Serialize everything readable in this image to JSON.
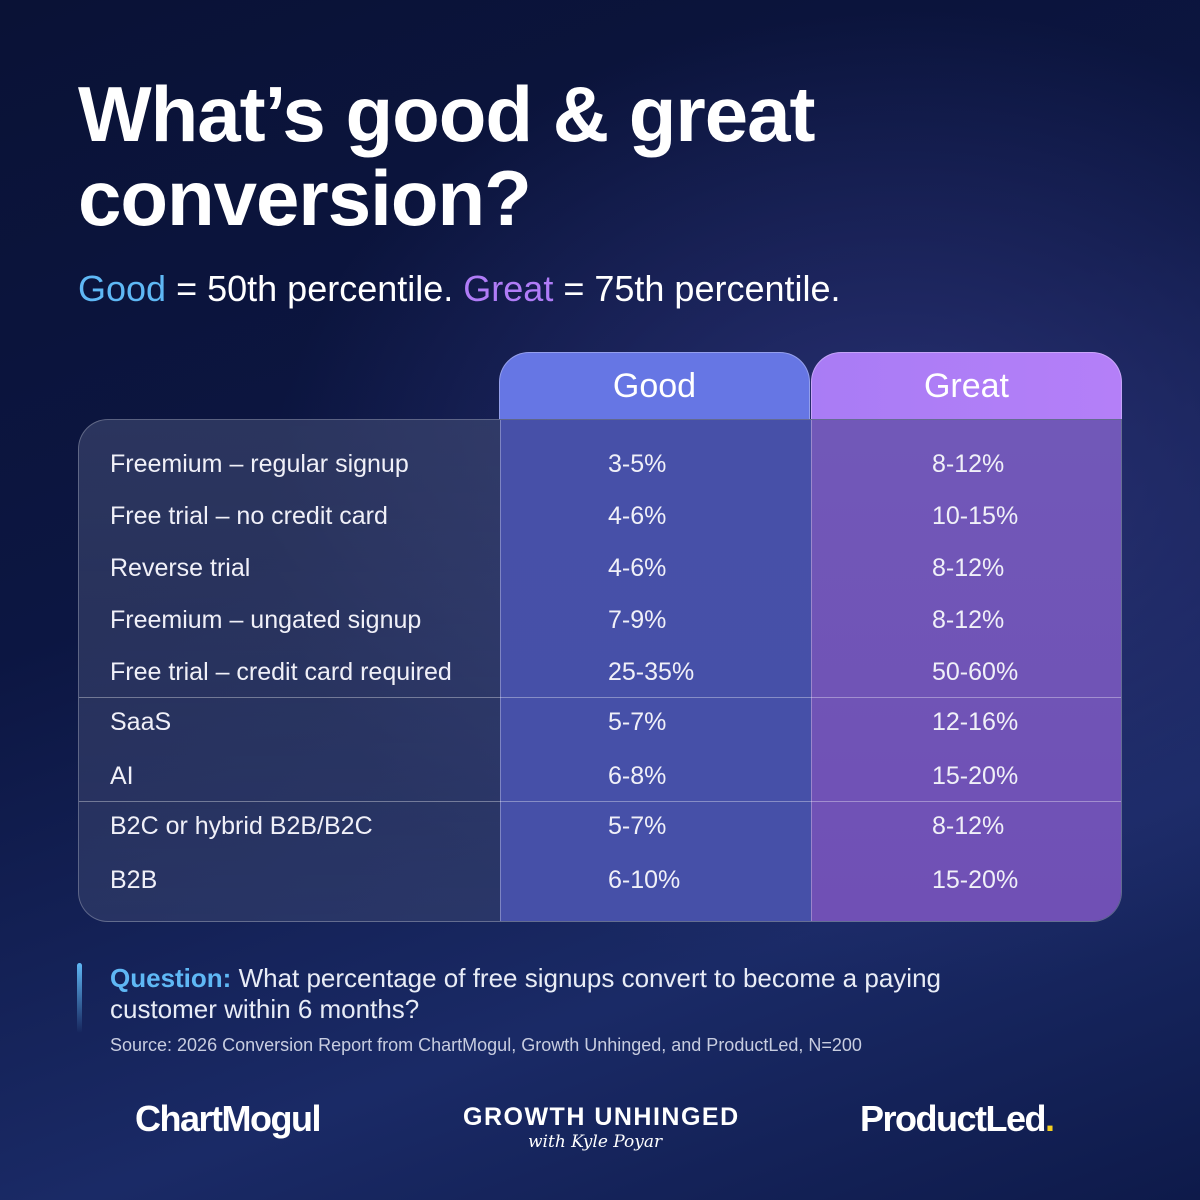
{
  "title": {
    "line1": "What’s good & great",
    "line2": "conversion?"
  },
  "subtitle": {
    "good": "Good",
    "part1": " = 50th percentile. ",
    "great": "Great",
    "part2": " = 75th percentile."
  },
  "colors": {
    "good": "#5fb8f5",
    "great": "#b07cf7",
    "good_column": "#6676e4",
    "great_column": "#b07cf7",
    "productled_dot": "#f5d020"
  },
  "chart_data": {
    "type": "table",
    "columns": [
      "",
      "Good",
      "Great"
    ],
    "groups": [
      [
        {
          "label": "Freemium – regular signup",
          "good": "3-5%",
          "great": "8-12%"
        },
        {
          "label": "Free trial – no credit card",
          "good": "4-6%",
          "great": "10-15%"
        },
        {
          "label": "Reverse trial",
          "good": "4-6%",
          "great": "8-12%"
        },
        {
          "label": "Freemium – ungated signup",
          "good": "7-9%",
          "great": "8-12%"
        },
        {
          "label": "Free trial – credit card required",
          "good": "25-35%",
          "great": "50-60%"
        }
      ],
      [
        {
          "label": "SaaS",
          "good": "5-7%",
          "great": "12-16%"
        },
        {
          "label": "AI",
          "good": "6-8%",
          "great": "15-20%"
        }
      ],
      [
        {
          "label": "B2C or hybrid B2B/B2C",
          "good": "5-7%",
          "great": "8-12%"
        },
        {
          "label": "B2B",
          "good": "6-10%",
          "great": "15-20%"
        }
      ]
    ]
  },
  "question": {
    "label": "Question:",
    "text": " What percentage of free signups convert to become a paying customer within 6 months?"
  },
  "source": "Source: 2026 Conversion Report from ChartMogul, Growth Unhinged, and ProductLed, N=200",
  "logos": {
    "chartmogul": "ChartMogul",
    "growth_unhinged": "GROWTH UNHINGED",
    "growth_unhinged_sub": "with Kyle Poyar",
    "productled": "ProductLed",
    "productled_dot": "."
  }
}
